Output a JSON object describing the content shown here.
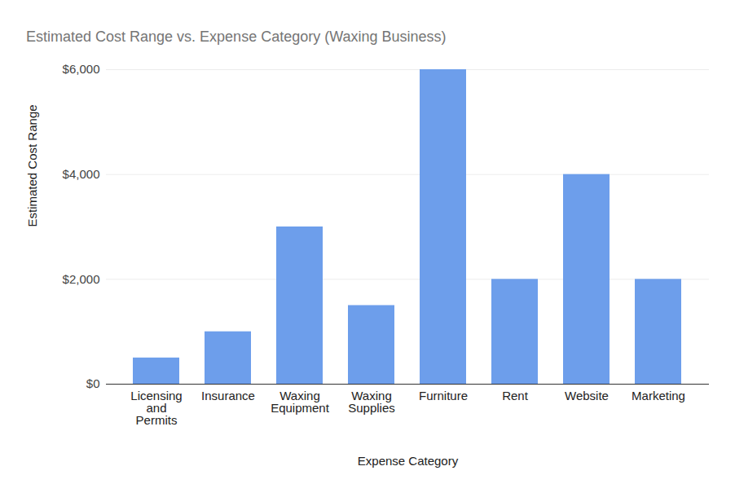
{
  "chart_data": {
    "type": "bar",
    "title": "Estimated Cost Range vs. Expense Category (Waxing Business)",
    "x_label": "Expense Category",
    "y_label": "Estimated Cost Range",
    "categories": [
      "Licensing and Permits",
      "Insurance",
      "Waxing Equipment",
      "Waxing Supplies",
      "Furniture",
      "Rent",
      "Website",
      "Marketing"
    ],
    "values": [
      500,
      1000,
      3000,
      1500,
      6000,
      2000,
      4000,
      2000
    ],
    "color": "#6d9eeb",
    "ylim": [
      0,
      6000
    ],
    "yticks": [
      {
        "value": 0,
        "label": "$0"
      },
      {
        "value": 2000,
        "label": "$2,000"
      },
      {
        "value": 4000,
        "label": "$4,000"
      },
      {
        "value": 6000,
        "label": "$6,000"
      }
    ],
    "grid": true
  }
}
